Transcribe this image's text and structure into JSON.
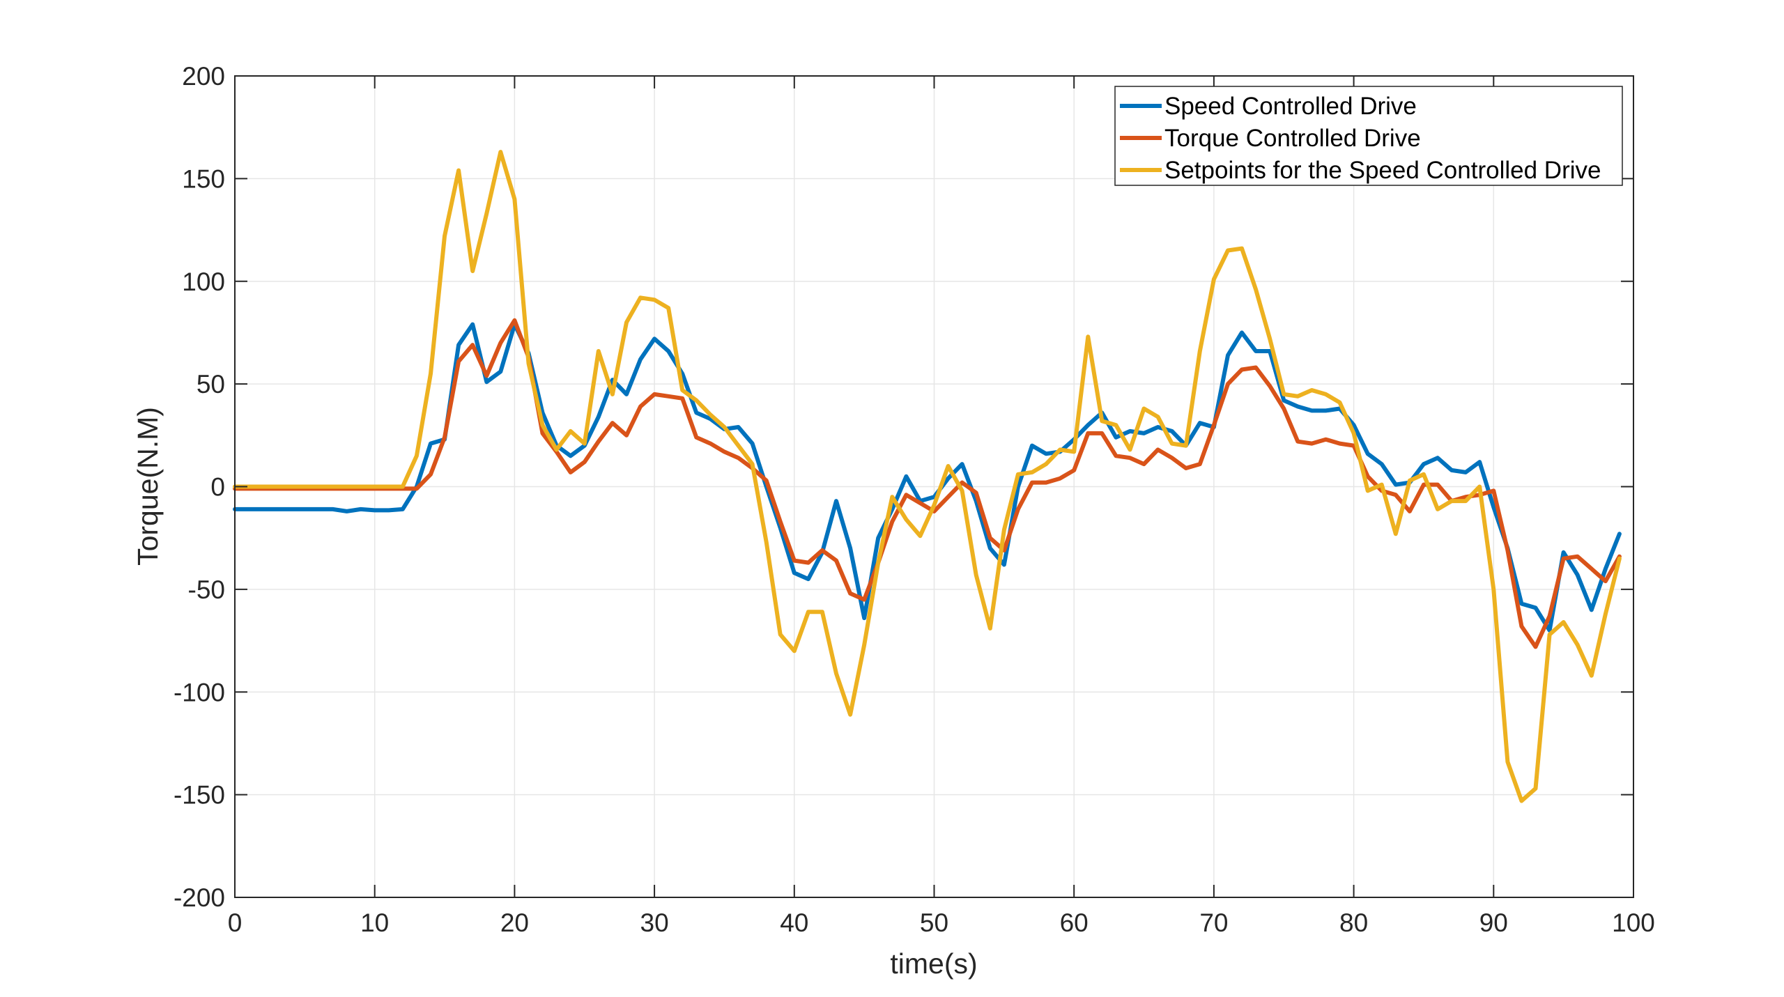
{
  "chart_data": {
    "type": "line",
    "title": "",
    "xlabel": "time(s)",
    "ylabel": "Torque(N.M)",
    "xlim": [
      0,
      100
    ],
    "ylim": [
      -200,
      200
    ],
    "xticks": [
      0,
      10,
      20,
      30,
      40,
      50,
      60,
      70,
      80,
      90,
      100
    ],
    "yticks": [
      -200,
      -150,
      -100,
      -50,
      0,
      50,
      100,
      150,
      200
    ],
    "xtick_labels": [
      "0",
      "10",
      "20",
      "30",
      "40",
      "50",
      "60",
      "70",
      "80",
      "90",
      "100"
    ],
    "ytick_labels": [
      "-200",
      "-150",
      "-100",
      "-50",
      "0",
      "50",
      "100",
      "150",
      "200"
    ],
    "grid": true,
    "legend_position": "top-right",
    "x": [
      0,
      1,
      2,
      3,
      4,
      5,
      6,
      7,
      8,
      9,
      10,
      11,
      12,
      13,
      14,
      15,
      16,
      17,
      18,
      19,
      20,
      21,
      22,
      23,
      24,
      25,
      26,
      27,
      28,
      29,
      30,
      31,
      32,
      33,
      34,
      35,
      36,
      37,
      38,
      39,
      40,
      41,
      42,
      43,
      44,
      45,
      46,
      47,
      48,
      49,
      50,
      51,
      52,
      53,
      54,
      55,
      56,
      57,
      58,
      59,
      60,
      61,
      62,
      63,
      64,
      65,
      66,
      67,
      68,
      69,
      70,
      71,
      72,
      73,
      74,
      75,
      76,
      77,
      78,
      79,
      80,
      81,
      82,
      83,
      84,
      85,
      86,
      87,
      88,
      89,
      90,
      91,
      92,
      93,
      94,
      95,
      96,
      97,
      98,
      99
    ],
    "series": [
      {
        "name": "Speed Controlled Drive",
        "color": "#0072BD",
        "values": [
          -11,
          -11,
          -11,
          -11,
          -11,
          -11,
          -11,
          -11,
          -12,
          -11,
          -11.5,
          -11.5,
          -11,
          0,
          21,
          23,
          69,
          79,
          51,
          56,
          79,
          65,
          36,
          20,
          15,
          20,
          34,
          52,
          45,
          62,
          72,
          66,
          55,
          36,
          33,
          28,
          29,
          21,
          0,
          -20,
          -42,
          -45,
          -32,
          -7,
          -30,
          -64,
          -25,
          -11,
          5,
          -7,
          -5,
          4,
          11,
          -7,
          -30,
          -38,
          0,
          20,
          16,
          17,
          23,
          30,
          36,
          24,
          27,
          26,
          29,
          27,
          20,
          31,
          29,
          64,
          75,
          66,
          66,
          42,
          39,
          37,
          37,
          38,
          30,
          16,
          11,
          1,
          2,
          11,
          14,
          8,
          7,
          12,
          -10,
          -30,
          -57,
          -59,
          -70,
          -32,
          -43,
          -60,
          -40,
          -23
        ]
      },
      {
        "name": "Torque Controlled Drive",
        "color": "#D95319",
        "values": [
          -1,
          -1,
          -1,
          -1,
          -1,
          -1,
          -1,
          -1,
          -1,
          -1,
          -1,
          -1,
          -1,
          -1,
          6,
          24,
          61,
          69,
          54,
          70,
          81,
          63,
          26,
          17,
          7,
          12,
          22,
          31,
          25,
          39,
          45,
          44,
          43,
          24,
          21,
          17,
          14,
          9,
          3,
          -17,
          -36,
          -37,
          -31,
          -36,
          -52,
          -55,
          -37,
          -17,
          -4,
          -8,
          -12,
          -5,
          2,
          -3,
          -25,
          -31,
          -11,
          2,
          2,
          4,
          8,
          26,
          26,
          15,
          14,
          11,
          18,
          14,
          9,
          11,
          30,
          50,
          57,
          58,
          49,
          38,
          22,
          21,
          23,
          21,
          20,
          5,
          -2,
          -4,
          -12,
          1,
          1,
          -7,
          -5,
          -4,
          -2,
          -31,
          -68,
          -78,
          -63,
          -35,
          -34,
          -40,
          -46,
          -34
        ]
      },
      {
        "name": "Setpoints for the Speed Controlled Drive",
        "color": "#EDB120",
        "values": [
          0,
          0,
          0,
          0,
          0,
          0,
          0,
          0,
          0,
          0,
          0,
          0,
          0,
          15,
          55,
          122,
          154,
          105,
          133,
          163,
          140,
          60,
          30,
          18,
          27,
          21,
          66,
          45,
          80,
          92,
          91,
          87,
          47,
          42,
          35,
          29,
          20,
          11,
          -27,
          -72,
          -80,
          -61,
          -61,
          -91,
          -111,
          -77,
          -37,
          -5,
          -16,
          -24,
          -9,
          10,
          -2,
          -43,
          -69,
          -21,
          6,
          7,
          11,
          18,
          17,
          73,
          32,
          30,
          18,
          38,
          34,
          21,
          20,
          66,
          101,
          115,
          116,
          96,
          72,
          45,
          44,
          47,
          45,
          41,
          26,
          -2,
          1,
          -23,
          3,
          6,
          -11,
          -7,
          -7,
          0,
          -50,
          -134,
          -153,
          -147,
          -72,
          -66,
          -77,
          -92,
          -62,
          -35
        ]
      }
    ]
  }
}
